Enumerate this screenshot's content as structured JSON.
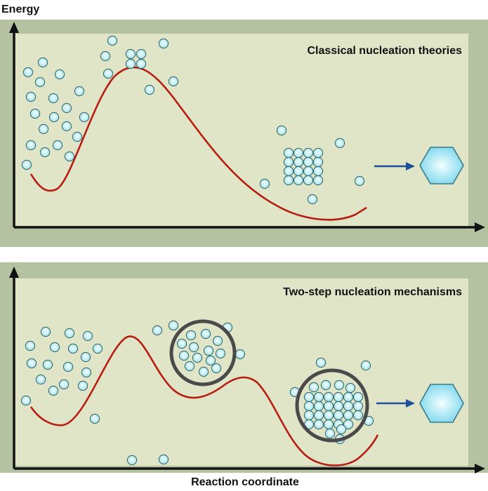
{
  "y_axis_label": "Energy",
  "x_axis_label": "Reaction coordinate",
  "panels": [
    {
      "title": "Classical nucleation theories"
    },
    {
      "title": "Two-step nucleation mechanisms"
    }
  ],
  "colors": {
    "outer_band": "#b4c2a1",
    "plot_area": "#dfe5c6",
    "curve": "#b81d12",
    "particle_stroke": "#3a6b6b",
    "particle_fill_center": "#f4ffff",
    "particle_fill_edge": "#9fe0ea",
    "dense_liquid_ring": "#4a4a4a",
    "arrow": "#1f4e9b",
    "crystal_fill": "#8fe3f3",
    "crystal_stroke": "#3a7a8a"
  },
  "icons": {
    "crystal": "hexagon-crystal-icon",
    "arrow": "right-arrow-icon"
  }
}
